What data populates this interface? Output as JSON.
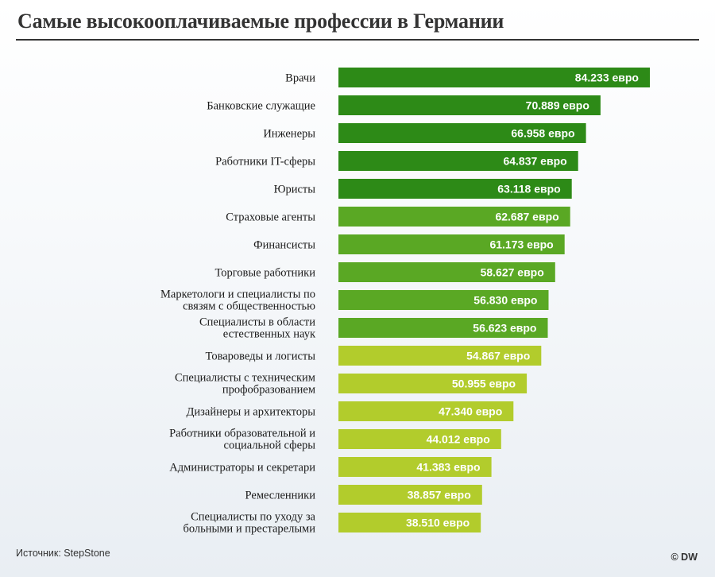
{
  "chart_data": {
    "type": "bar",
    "orientation": "horizontal",
    "title": "Самые высокооплачиваемые профессии в Германии",
    "categories": [
      [
        "Врачи"
      ],
      [
        "Банковские служащие"
      ],
      [
        "Инженеры"
      ],
      [
        "Работники IT-сферы"
      ],
      [
        "Юристы"
      ],
      [
        "Страховые агенты"
      ],
      [
        "Финансисты"
      ],
      [
        "Торговые работники"
      ],
      [
        "Маркетологи и специалисты по",
        "связям с общественностью"
      ],
      [
        "Специалисты в области",
        "естественных наук"
      ],
      [
        "Товароведы и логисты"
      ],
      [
        "Специалисты с техническим",
        "профобразованием"
      ],
      [
        "Дизайнеры и архитекторы"
      ],
      [
        "Работники образовательной и",
        "социальной сферы"
      ],
      [
        "Администраторы и секретари"
      ],
      [
        "Ремесленники"
      ],
      [
        "Специалисты по уходу за",
        "больными и престарелыми"
      ]
    ],
    "values": [
      84233,
      70889,
      66958,
      64837,
      63118,
      62687,
      61173,
      58627,
      56830,
      56623,
      54867,
      50955,
      47340,
      44012,
      41383,
      38857,
      38510
    ],
    "value_labels": [
      "84.233 евро",
      "70.889 евро",
      "66.958 евро",
      "64.837 евро",
      "63.118 евро",
      "62.687 евро",
      "61.173 евро",
      "58.627 евро",
      "56.830 евро",
      "56.623 евро",
      "54.867 евро",
      "50.955 евро",
      "47.340 евро",
      "44.012 евро",
      "41.383 евро",
      "38.857 евро",
      "38.510 евро"
    ],
    "bar_colors": [
      "#2d8a17",
      "#2d8a17",
      "#2d8a17",
      "#2d8a17",
      "#2d8a17",
      "#5aa824",
      "#5aa824",
      "#5aa824",
      "#5aa824",
      "#5aa824",
      "#b2cc2c",
      "#b2cc2c",
      "#b2cc2c",
      "#b2cc2c",
      "#b2cc2c",
      "#b2cc2c",
      "#b2cc2c"
    ],
    "xlim": [
      0,
      84233
    ],
    "grid": false,
    "legend": "none"
  },
  "footer": {
    "source": "Источник: StepStone",
    "credit": "© DW"
  }
}
